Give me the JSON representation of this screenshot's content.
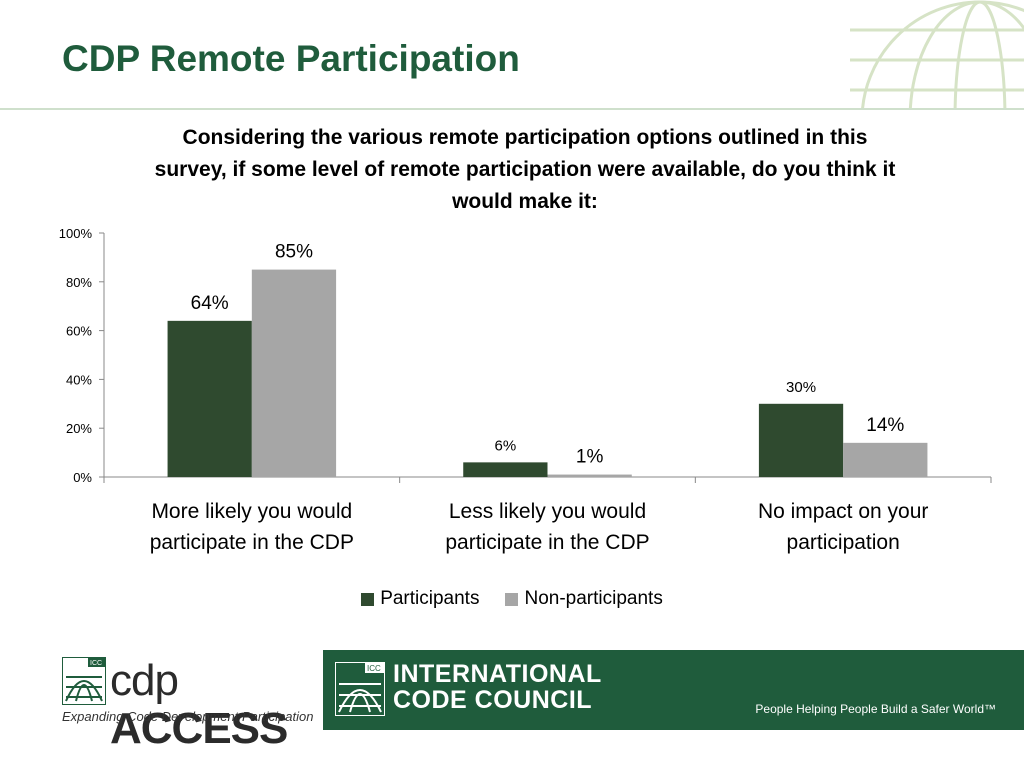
{
  "slide": {
    "title": "CDP Remote Participation"
  },
  "chart_data": {
    "type": "bar",
    "title": "Considering the various remote participation options outlined in this survey, if some level of remote participation were available, do you think it would make it:",
    "categories": [
      [
        "More likely you would",
        "participate in the CDP"
      ],
      [
        "Less likely you would",
        "participate in the CDP"
      ],
      [
        "No impact on your",
        "participation"
      ]
    ],
    "series": [
      {
        "name": "Participants",
        "color": "#2f4a2f",
        "values": [
          64,
          6,
          30
        ],
        "labels": [
          "64%",
          "6%",
          "30%"
        ]
      },
      {
        "name": "Non-participants",
        "color": "#a6a6a6",
        "values": [
          85,
          1,
          14
        ],
        "labels": [
          "85%",
          "1%",
          "14%"
        ]
      }
    ],
    "ylim": [
      0,
      100
    ],
    "yticks": [
      "0%",
      "20%",
      "40%",
      "60%",
      "80%",
      "100%"
    ],
    "grid": false,
    "legend_position": "bottom"
  },
  "footer": {
    "cdp_logo_text_light": "cdp",
    "cdp_logo_text_bold": "ACCESS",
    "cdp_tagline": "Expanding Code Development Participation",
    "icc_small": "ICC",
    "icc_name_line1": "INTERNATIONAL",
    "icc_name_line2": "CODE COUNCIL",
    "icc_tagline": "People Helping People Build a Safer World™"
  }
}
